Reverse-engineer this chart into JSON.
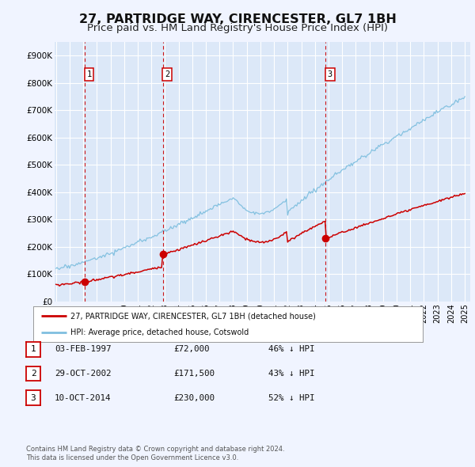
{
  "title": "27, PARTRIDGE WAY, CIRENCESTER, GL7 1BH",
  "subtitle": "Price paid vs. HM Land Registry's House Price Index (HPI)",
  "title_fontsize": 11.5,
  "subtitle_fontsize": 9.5,
  "bg_color": "#f0f4ff",
  "plot_bg_color": "#dce8f8",
  "grid_color": "#ffffff",
  "ylim": [
    0,
    950000
  ],
  "yticks": [
    0,
    100000,
    200000,
    300000,
    400000,
    500000,
    600000,
    700000,
    800000,
    900000
  ],
  "ytick_labels": [
    "£0",
    "£100K",
    "£200K",
    "£300K",
    "£400K",
    "£500K",
    "£600K",
    "£700K",
    "£800K",
    "£900K"
  ],
  "x_start_year": 1995,
  "x_end_year": 2025,
  "transactions": [
    {
      "date_num": 1997.09,
      "price": 72000,
      "label": "1"
    },
    {
      "date_num": 2002.83,
      "price": 171500,
      "label": "2"
    },
    {
      "date_num": 2014.78,
      "price": 230000,
      "label": "3"
    }
  ],
  "legend_line1": "27, PARTRIDGE WAY, CIRENCESTER, GL7 1BH (detached house)",
  "legend_line2": "HPI: Average price, detached house, Cotswold",
  "table_rows": [
    {
      "num": "1",
      "date": "03-FEB-1997",
      "price": "£72,000",
      "note": "46% ↓ HPI"
    },
    {
      "num": "2",
      "date": "29-OCT-2002",
      "price": "£171,500",
      "note": "43% ↓ HPI"
    },
    {
      "num": "3",
      "date": "10-OCT-2014",
      "price": "£230,000",
      "note": "52% ↓ HPI"
    }
  ],
  "footer1": "Contains HM Land Registry data © Crown copyright and database right 2024.",
  "footer2": "This data is licensed under the Open Government Licence v3.0.",
  "hpi_color": "#7fbfdf",
  "price_color": "#cc0000",
  "vline_color": "#cc0000"
}
